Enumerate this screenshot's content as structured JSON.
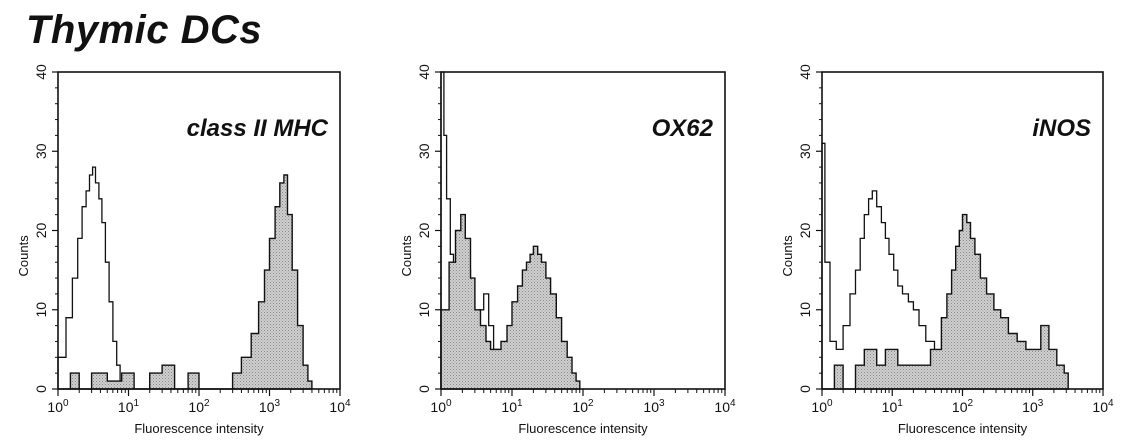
{
  "figure_title": "Thymic DCs",
  "chart_data": [
    {
      "type": "area",
      "marker_label": "class II MHC",
      "xlabel": "Fluorescence intensity",
      "ylabel": "Counts",
      "xscale": "log",
      "xlim": [
        1,
        10000
      ],
      "ylim": [
        0,
        40
      ],
      "yticks": [
        0,
        10,
        20,
        30,
        40
      ],
      "xticks": [
        "10^0",
        "10^1",
        "10^2",
        "10^3",
        "10^4"
      ],
      "series": [
        {
          "style": "open-line",
          "x": [
            1.0,
            1.3,
            1.6,
            1.9,
            2.2,
            2.5,
            2.8,
            3.1,
            3.4,
            3.8,
            4.2,
            4.7,
            5.3,
            6.0,
            6.8,
            7.6,
            8.5,
            10.0
          ],
          "y": [
            4,
            9,
            14,
            19,
            23,
            25,
            27,
            28,
            26,
            24,
            21,
            16,
            11,
            6,
            3,
            1,
            0,
            0
          ]
        },
        {
          "style": "filled-grey",
          "x": [
            1,
            1.5,
            2,
            3,
            5,
            8,
            12,
            20,
            30,
            45,
            70,
            100,
            140,
            200,
            300,
            400,
            550,
            700,
            850,
            1000,
            1200,
            1400,
            1600,
            1800,
            2100,
            2500,
            3000,
            3500,
            4000
          ],
          "y": [
            0,
            2,
            0,
            2,
            1,
            2,
            0,
            2,
            3,
            0,
            2,
            0,
            0,
            0,
            2,
            4,
            7,
            11,
            15,
            19,
            23,
            26,
            27,
            22,
            15,
            8,
            3,
            1,
            0
          ]
        }
      ]
    },
    {
      "type": "area",
      "marker_label": "OX62",
      "xlabel": "Fluorescence intensity",
      "ylabel": "Counts",
      "xscale": "log",
      "xlim": [
        1,
        10000
      ],
      "ylim": [
        0,
        40
      ],
      "yticks": [
        0,
        10,
        20,
        30,
        40
      ],
      "xticks": [
        "10^0",
        "10^1",
        "10^2",
        "10^3",
        "10^4"
      ],
      "series": [
        {
          "style": "open-line",
          "x": [
            1.0,
            1.1,
            1.2,
            1.35,
            1.5,
            1.7,
            1.9,
            2.2,
            2.6,
            3.0,
            3.5,
            4.0,
            4.7,
            5.5,
            6.5,
            7.5,
            9.0
          ],
          "y": [
            40,
            32,
            24,
            17,
            14,
            16,
            18,
            15,
            11,
            9,
            10,
            12,
            8,
            5,
            3,
            1,
            0
          ]
        },
        {
          "style": "filled-grey",
          "x": [
            1,
            1.3,
            1.6,
            1.9,
            2.2,
            2.6,
            3.0,
            3.6,
            4.3,
            5.0,
            6.0,
            7.0,
            8.5,
            10,
            12,
            14,
            16,
            18,
            20,
            23,
            26,
            30,
            35,
            42,
            50,
            60,
            70,
            80,
            90
          ],
          "y": [
            10,
            16,
            20,
            22,
            19,
            14,
            10,
            8,
            6,
            5,
            5,
            6,
            8,
            11,
            13,
            15,
            16,
            17,
            18,
            17,
            16,
            14,
            12,
            9,
            6,
            4,
            2,
            1,
            0
          ]
        }
      ]
    },
    {
      "type": "area",
      "marker_label": "iNOS",
      "xlabel": "Fluorescence intensity",
      "ylabel": "Counts",
      "xscale": "log",
      "xlim": [
        1,
        10000
      ],
      "ylim": [
        0,
        40
      ],
      "yticks": [
        0,
        10,
        20,
        30,
        40
      ],
      "xticks": [
        "10^0",
        "10^1",
        "10^2",
        "10^3",
        "10^4"
      ],
      "series": [
        {
          "style": "open-line",
          "x": [
            1.0,
            1.1,
            1.3,
            1.6,
            2.0,
            2.5,
            3.0,
            3.5,
            4.0,
            4.6,
            5.2,
            6.0,
            7.0,
            8.0,
            9.0,
            10.5,
            12,
            14,
            17,
            20,
            24,
            30,
            40,
            55,
            75,
            100
          ],
          "y": [
            31,
            16,
            6,
            5,
            8,
            12,
            15,
            19,
            22,
            24,
            25,
            23,
            21,
            19,
            17,
            15,
            13,
            12,
            11,
            10,
            8,
            6,
            4,
            2,
            1,
            0
          ]
        },
        {
          "style": "filled-grey",
          "x": [
            1,
            1.5,
            2,
            3,
            4,
            6,
            8,
            12,
            18,
            25,
            35,
            50,
            60,
            70,
            80,
            90,
            100,
            115,
            130,
            150,
            180,
            220,
            280,
            350,
            450,
            600,
            800,
            1000,
            1300,
            1700,
            2200,
            2800,
            3200
          ],
          "y": [
            0,
            3,
            0,
            3,
            5,
            3,
            5,
            3,
            3,
            3,
            5,
            9,
            12,
            15,
            18,
            20,
            22,
            21,
            19,
            17,
            14,
            12,
            10,
            9,
            7,
            6,
            5,
            5,
            8,
            5,
            3,
            2,
            0
          ]
        }
      ]
    }
  ]
}
